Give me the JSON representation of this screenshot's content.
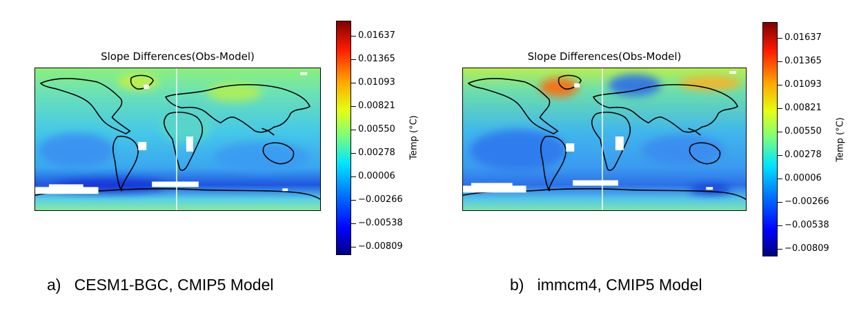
{
  "colorbar": {
    "label": "Temp (°C)",
    "ticks": [
      "0.01637",
      "0.01365",
      "0.01093",
      "0.00821",
      "0.00550",
      "0.00278",
      "0.00006",
      "−0.00266",
      "−0.00538",
      "−0.00809"
    ]
  },
  "chart_data": [
    {
      "type": "heatmap",
      "title": "Slope Differences(Obs-Model)",
      "caption_letter": "a)",
      "caption_text": "CESM1-BGC, CMIP5 Model",
      "colorbar_label": "Temp (°C)",
      "colorbar_ticks": [
        0.01637,
        0.01365,
        0.01093,
        0.00821,
        0.0055,
        0.00278,
        6e-05,
        -0.00266,
        -0.00538,
        -0.00809
      ],
      "colormap": "jet",
      "vmin": -0.0095,
      "vmax": 0.0178,
      "grid": false
    },
    {
      "type": "heatmap",
      "title": "Slope Differences(Obs-Model)",
      "caption_letter": "b)",
      "caption_text": "immcm4, CMIP5 Model",
      "colorbar_label": "Temp (°C)",
      "colorbar_ticks": [
        0.01637,
        0.01365,
        0.01093,
        0.00821,
        0.0055,
        0.00278,
        6e-05,
        -0.00266,
        -0.00538,
        -0.00809
      ],
      "colormap": "jet",
      "vmin": -0.0095,
      "vmax": 0.0178,
      "grid": false
    }
  ],
  "colors": {
    "field_mid": "#4fd3e0",
    "land_gap": "#ffffff",
    "coastline": "#000000"
  }
}
